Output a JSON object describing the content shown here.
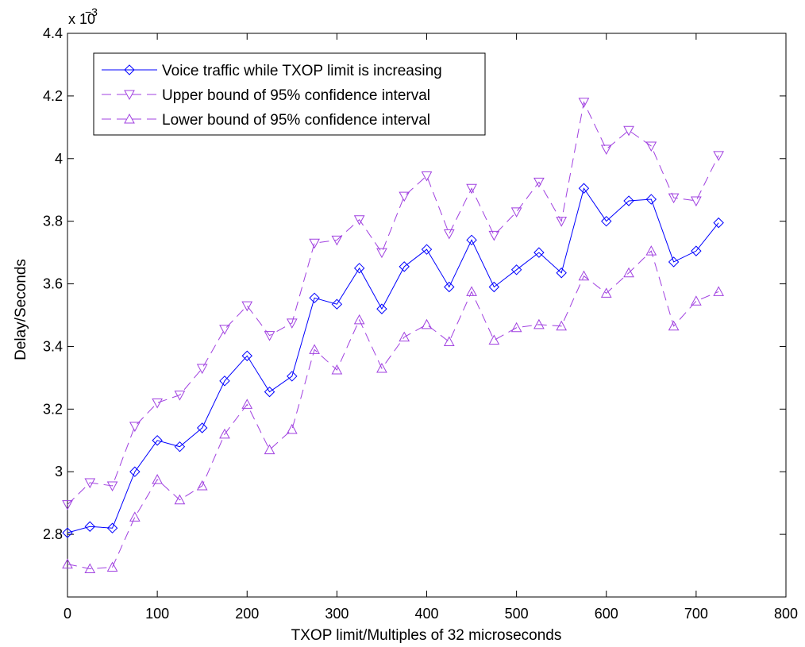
{
  "chart_data": {
    "type": "line",
    "title": "",
    "xlabel": "TXOP limit/Multiples of 32 microseconds",
    "ylabel": "Delay/Seconds",
    "xlim": [
      0,
      800
    ],
    "ylim": [
      0.0026,
      0.0044
    ],
    "xticks": [
      "0",
      "100",
      "200",
      "300",
      "400",
      "500",
      "600",
      "700",
      "800"
    ],
    "yticks": [
      "2.8",
      "3",
      "3.2",
      "3.4",
      "3.6",
      "3.8",
      "4",
      "4.2",
      "4.4"
    ],
    "y_multiplier_base": "x 10",
    "y_multiplier_exp": "−3",
    "grid": false,
    "legend_position": "top-left",
    "x": [
      0,
      25,
      50,
      75,
      100,
      125,
      150,
      175,
      200,
      225,
      250,
      275,
      300,
      325,
      350,
      375,
      400,
      425,
      450,
      475,
      500,
      525,
      550,
      575,
      600,
      625,
      650,
      675,
      700,
      725
    ],
    "series": [
      {
        "name": "Voice traffic while TXOP limit is increasing",
        "color": "#0000ff",
        "marker": "diamond",
        "line_style": "solid",
        "values": [
          2.805,
          2.825,
          2.82,
          3.0,
          3.1,
          3.08,
          3.14,
          3.29,
          3.37,
          3.255,
          3.305,
          3.555,
          3.535,
          3.65,
          3.52,
          3.655,
          3.71,
          3.59,
          3.74,
          3.59,
          3.645,
          3.7,
          3.635,
          3.905,
          3.8,
          3.865,
          3.87,
          3.67,
          3.705,
          3.795
        ]
      },
      {
        "name": "Upper bound of 95% confidence interval",
        "color": "#a040e0",
        "marker": "triangle-down",
        "line_style": "dashed",
        "values": [
          2.895,
          2.965,
          2.955,
          3.145,
          3.22,
          3.245,
          3.33,
          3.455,
          3.53,
          3.435,
          3.475,
          3.73,
          3.74,
          3.805,
          3.7,
          3.88,
          3.945,
          3.76,
          3.905,
          3.755,
          3.83,
          3.925,
          3.8,
          4.18,
          4.03,
          4.09,
          4.04,
          3.875,
          3.865,
          4.01
        ]
      },
      {
        "name": "Lower bound of 95% confidence interval",
        "color": "#a040e0",
        "marker": "triangle-up",
        "line_style": "dashed",
        "values": [
          2.705,
          2.69,
          2.695,
          2.855,
          2.975,
          2.91,
          2.955,
          3.12,
          3.215,
          3.07,
          3.135,
          3.39,
          3.325,
          3.485,
          3.33,
          3.43,
          3.47,
          3.415,
          3.575,
          3.42,
          3.46,
          3.47,
          3.465,
          3.625,
          3.57,
          3.635,
          3.705,
          3.465,
          3.545,
          3.575
        ]
      }
    ]
  }
}
